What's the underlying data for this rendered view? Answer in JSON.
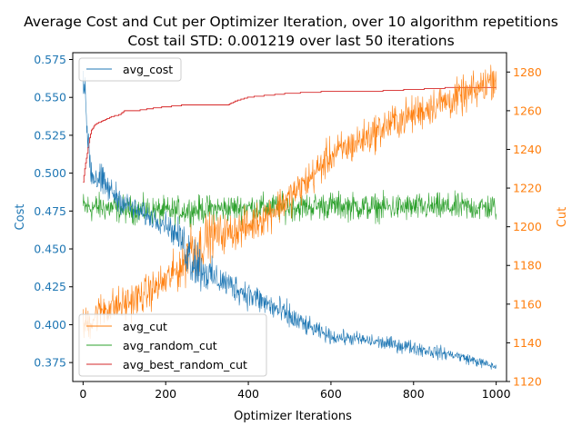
{
  "chart_data": {
    "type": "line",
    "title": "Average Cost and Cut per Optimizer Iteration, over 10 algorithm repetitions",
    "subtitle": "Cost tail STD: 0.001219 over last 50 iterations",
    "xlabel": "Optimizer Iterations",
    "ylabel_left": "Cost",
    "ylabel_right": "Cut",
    "xlim": [
      -25,
      1025
    ],
    "ylim_left": [
      0.3625,
      0.5795
    ],
    "ylim_right": [
      1120,
      1290
    ],
    "x_ticks": [
      0,
      200,
      400,
      600,
      800,
      1000
    ],
    "y_ticks_left": [
      0.375,
      0.4,
      0.425,
      0.45,
      0.475,
      0.5,
      0.525,
      0.55,
      0.575
    ],
    "y_ticks_left_labels": [
      "0.375",
      "0.400",
      "0.425",
      "0.450",
      "0.475",
      "0.500",
      "0.525",
      "0.550",
      "0.575"
    ],
    "y_ticks_right": [
      1120,
      1140,
      1160,
      1180,
      1200,
      1220,
      1240,
      1260,
      1280
    ],
    "grid": false,
    "legend_left": {
      "placement": "top-left",
      "entries": [
        "avg_cost"
      ]
    },
    "legend_right": {
      "placement": "bottom-left",
      "entries": [
        "avg_cut",
        "avg_random_cut",
        "avg_best_random_cut"
      ]
    },
    "colors": {
      "avg_cost": "#1f77b4",
      "avg_cut": "#ff7f0e",
      "avg_random_cut": "#2ca02c",
      "avg_best_random_cut": "#d62728",
      "left_axis": "#1f77b4",
      "right_axis": "#ff7f0e"
    },
    "series": [
      {
        "name": "avg_cost",
        "axis": "left",
        "x": [
          0,
          10,
          20,
          40,
          60,
          100,
          150,
          200,
          240,
          260,
          280,
          300,
          350,
          400,
          450,
          500,
          550,
          600,
          650,
          700,
          750,
          800,
          850,
          900,
          950,
          1000
        ],
        "y": [
          0.565,
          0.53,
          0.5,
          0.495,
          0.49,
          0.48,
          0.472,
          0.467,
          0.455,
          0.445,
          0.44,
          0.433,
          0.427,
          0.42,
          0.413,
          0.405,
          0.398,
          0.392,
          0.391,
          0.389,
          0.387,
          0.385,
          0.382,
          0.38,
          0.376,
          0.372
        ],
        "noise": [
          0.008,
          0.015,
          0.012,
          0.01,
          0.008,
          0.007,
          0.006,
          0.006,
          0.01,
          0.018,
          0.015,
          0.01,
          0.008,
          0.008,
          0.008,
          0.008,
          0.005,
          0.004,
          0.004,
          0.004,
          0.004,
          0.004,
          0.004,
          0.003,
          0.003,
          0.002
        ]
      },
      {
        "name": "avg_cut",
        "axis": "right",
        "x": [
          0,
          50,
          100,
          150,
          200,
          240,
          260,
          280,
          300,
          350,
          400,
          450,
          500,
          550,
          600,
          650,
          700,
          750,
          800,
          850,
          900,
          950,
          1000
        ],
        "y": [
          1148,
          1158,
          1160,
          1165,
          1172,
          1180,
          1190,
          1188,
          1195,
          1197,
          1200,
          1207,
          1215,
          1225,
          1237,
          1242,
          1248,
          1254,
          1258,
          1263,
          1266,
          1270,
          1278
        ],
        "noise": [
          8,
          8,
          8,
          8,
          8,
          10,
          14,
          12,
          10,
          8,
          8,
          8,
          8,
          8,
          8,
          8,
          8,
          8,
          8,
          8,
          8,
          8,
          8
        ]
      },
      {
        "name": "avg_random_cut",
        "axis": "right",
        "x": [
          0,
          50,
          100,
          200,
          300,
          400,
          500,
          600,
          700,
          800,
          900,
          1000
        ],
        "y": [
          1210,
          1210,
          1209,
          1208,
          1209,
          1210,
          1210,
          1211,
          1210,
          1210,
          1210,
          1210
        ],
        "noise": [
          7,
          6,
          6,
          6,
          6,
          6,
          6,
          6,
          6,
          6,
          6,
          6
        ]
      },
      {
        "name": "avg_best_random_cut",
        "axis": "right",
        "x": [
          0,
          5,
          10,
          15,
          20,
          30,
          50,
          70,
          90,
          100,
          130,
          160,
          200,
          250,
          300,
          350,
          370,
          400,
          450,
          500,
          600,
          700,
          800,
          900,
          1000
        ],
        "y": [
          1223,
          1232,
          1238,
          1245,
          1250,
          1253,
          1255,
          1257,
          1258,
          1260,
          1260,
          1261,
          1262,
          1263,
          1263,
          1263,
          1265,
          1267,
          1268,
          1269,
          1270,
          1270,
          1271,
          1272,
          1272
        ],
        "noise": [
          0,
          0,
          0,
          0,
          0,
          0,
          0,
          0,
          0,
          0,
          0,
          0,
          0,
          0,
          0,
          0,
          0,
          0,
          0,
          0,
          0,
          0,
          0,
          0,
          0
        ]
      }
    ]
  }
}
